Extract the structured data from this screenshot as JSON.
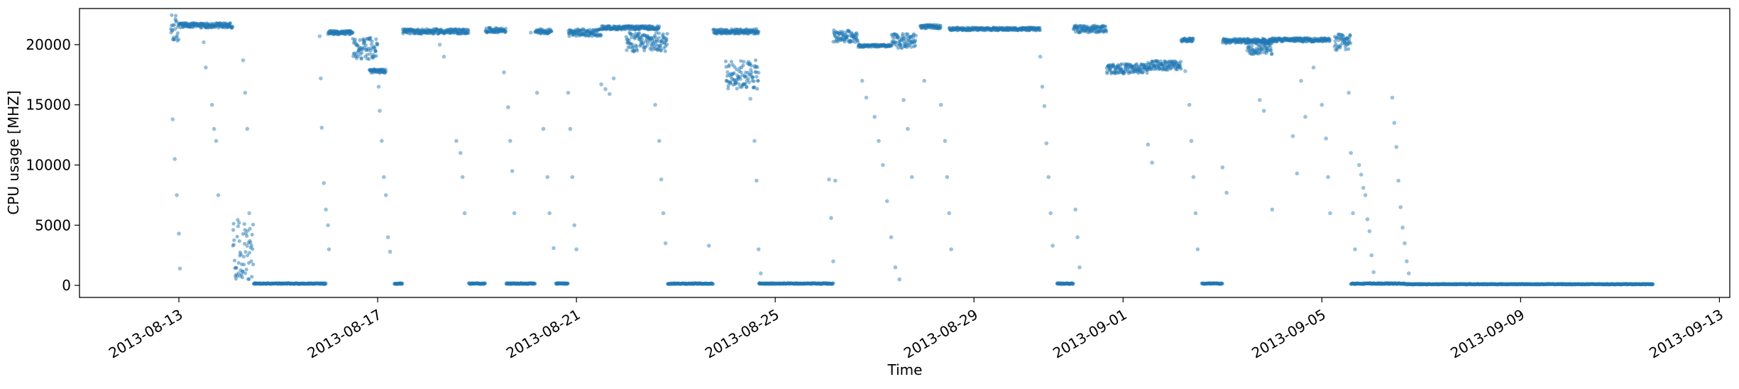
{
  "chart_data": {
    "type": "scatter",
    "title": "",
    "xlabel": "Time",
    "ylabel": "CPU usage [MHZ]",
    "xlim": [
      "2013-08-11T00:00",
      "2013-09-13T05:00"
    ],
    "ylim": [
      -1000,
      23000
    ],
    "x_ticks": [
      "2013-08-13",
      "2013-08-17",
      "2013-08-21",
      "2013-08-25",
      "2013-08-29",
      "2013-09-01",
      "2013-09-05",
      "2013-09-09",
      "2013-09-13"
    ],
    "y_ticks": [
      0,
      5000,
      10000,
      15000,
      20000
    ],
    "y_tick_labels": [
      "0",
      "5000",
      "10000",
      "15000",
      "20000"
    ],
    "grid": false,
    "legend": "none",
    "marker_color": "#1f77b4",
    "series": [
      {
        "segments": [
          {
            "start": "2013-08-12T20:00",
            "end": "2013-08-13T00:00",
            "level": 21300,
            "spread": 1200
          },
          {
            "start": "2013-08-13T00:00",
            "end": "2013-08-14T02:00",
            "level": 21600,
            "spread": 200
          },
          {
            "start": "2013-08-14T02:00",
            "end": "2013-08-14T12:00",
            "level": 3000,
            "spread": 2500
          },
          {
            "start": "2013-08-14T12:00",
            "end": "2013-08-15T23:00",
            "level": 150,
            "spread": 40
          },
          {
            "start": "2013-08-16T00:00",
            "end": "2013-08-16T12:00",
            "level": 21000,
            "spread": 150
          },
          {
            "start": "2013-08-16T12:00",
            "end": "2013-08-17T00:00",
            "level": 19700,
            "spread": 900
          },
          {
            "start": "2013-08-16T20:00",
            "end": "2013-08-17T04:00",
            "level": 17800,
            "spread": 150
          },
          {
            "start": "2013-08-17T08:00",
            "end": "2013-08-17T12:00",
            "level": 150,
            "spread": 40
          },
          {
            "start": "2013-08-17T12:00",
            "end": "2013-08-18T20:00",
            "level": 21100,
            "spread": 200
          },
          {
            "start": "2013-08-18T20:00",
            "end": "2013-08-19T04:00",
            "level": 150,
            "spread": 40
          },
          {
            "start": "2013-08-19T04:00",
            "end": "2013-08-19T14:00",
            "level": 21200,
            "spread": 200
          },
          {
            "start": "2013-08-19T14:00",
            "end": "2013-08-20T04:00",
            "level": 150,
            "spread": 40
          },
          {
            "start": "2013-08-20T04:00",
            "end": "2013-08-20T12:00",
            "level": 21100,
            "spread": 200
          },
          {
            "start": "2013-08-20T14:00",
            "end": "2013-08-20T20:00",
            "level": 150,
            "spread": 40
          },
          {
            "start": "2013-08-20T20:00",
            "end": "2013-08-21T12:00",
            "level": 21000,
            "spread": 300
          },
          {
            "start": "2013-08-21T12:00",
            "end": "2013-08-22T16:00",
            "level": 21400,
            "spread": 150
          },
          {
            "start": "2013-08-22T00:00",
            "end": "2013-08-22T20:00",
            "level": 20200,
            "spread": 800
          },
          {
            "start": "2013-08-22T20:00",
            "end": "2013-08-23T18:00",
            "level": 150,
            "spread": 40
          },
          {
            "start": "2013-08-23T18:00",
            "end": "2013-08-24T16:00",
            "level": 21100,
            "spread": 200
          },
          {
            "start": "2013-08-24T00:00",
            "end": "2013-08-24T16:00",
            "level": 17500,
            "spread": 1200
          },
          {
            "start": "2013-08-24T16:00",
            "end": "2013-08-26T04:00",
            "level": 150,
            "spread": 40
          },
          {
            "start": "2013-08-26T04:00",
            "end": "2013-08-26T16:00",
            "level": 20700,
            "spread": 500
          },
          {
            "start": "2013-08-26T16:00",
            "end": "2013-08-27T08:00",
            "level": 19900,
            "spread": 100
          },
          {
            "start": "2013-08-27T08:00",
            "end": "2013-08-27T20:00",
            "level": 20300,
            "spread": 600
          },
          {
            "start": "2013-08-27T22:00",
            "end": "2013-08-28T08:00",
            "level": 21500,
            "spread": 150
          },
          {
            "start": "2013-08-28T12:00",
            "end": "2013-08-30T08:00",
            "level": 21300,
            "spread": 120
          },
          {
            "start": "2013-08-30T16:00",
            "end": "2013-08-31T00:00",
            "level": 150,
            "spread": 40
          },
          {
            "start": "2013-08-31T00:00",
            "end": "2013-08-31T16:00",
            "level": 21300,
            "spread": 300
          },
          {
            "start": "2013-08-31T16:00",
            "end": "2013-09-01T12:00",
            "level": 18000,
            "spread": 400
          },
          {
            "start": "2013-09-01T12:00",
            "end": "2013-09-02T04:00",
            "level": 18300,
            "spread": 400
          },
          {
            "start": "2013-09-02T04:00",
            "end": "2013-09-02T10:00",
            "level": 20400,
            "spread": 150
          },
          {
            "start": "2013-09-02T14:00",
            "end": "2013-09-03T00:00",
            "level": 150,
            "spread": 40
          },
          {
            "start": "2013-09-03T00:00",
            "end": "2013-09-04T00:00",
            "level": 20300,
            "spread": 200
          },
          {
            "start": "2013-09-03T12:00",
            "end": "2013-09-04T00:00",
            "level": 19800,
            "spread": 600
          },
          {
            "start": "2013-09-04T00:00",
            "end": "2013-09-05T04:00",
            "level": 20400,
            "spread": 150
          },
          {
            "start": "2013-09-05T06:00",
            "end": "2013-09-05T14:00",
            "level": 20200,
            "spread": 700
          },
          {
            "start": "2013-09-05T14:00",
            "end": "2013-09-06T16:00",
            "level": 150,
            "spread": 40
          },
          {
            "start": "2013-09-06T16:00",
            "end": "2013-09-11T16:00",
            "level": 100,
            "spread": 30
          }
        ],
        "scatter_points": [
          [
            "2013-08-12T21:00",
            13800
          ],
          [
            "2013-08-12T22:00",
            10500
          ],
          [
            "2013-08-12T23:00",
            7500
          ],
          [
            "2013-08-13T00:00",
            4300
          ],
          [
            "2013-08-13T00:30",
            1400
          ],
          [
            "2013-08-13T12:00",
            20200
          ],
          [
            "2013-08-13T13:00",
            18100
          ],
          [
            "2013-08-13T16:00",
            15000
          ],
          [
            "2013-08-13T17:00",
            13000
          ],
          [
            "2013-08-13T18:00",
            12000
          ],
          [
            "2013-08-13T19:00",
            7500
          ],
          [
            "2013-08-14T07:00",
            18700
          ],
          [
            "2013-08-14T08:00",
            16000
          ],
          [
            "2013-08-14T09:00",
            13000
          ],
          [
            "2013-08-14T10:00",
            6000
          ],
          [
            "2013-08-15T20:00",
            20700
          ],
          [
            "2013-08-15T20:30",
            17200
          ],
          [
            "2013-08-15T21:00",
            13100
          ],
          [
            "2013-08-15T22:00",
            8500
          ],
          [
            "2013-08-15T23:00",
            6300
          ],
          [
            "2013-08-16T00:00",
            5000
          ],
          [
            "2013-08-16T00:30",
            3000
          ],
          [
            "2013-08-17T00:30",
            16500
          ],
          [
            "2013-08-17T01:00",
            14500
          ],
          [
            "2013-08-17T02:00",
            12000
          ],
          [
            "2013-08-17T03:00",
            9000
          ],
          [
            "2013-08-17T04:00",
            7500
          ],
          [
            "2013-08-17T05:00",
            4000
          ],
          [
            "2013-08-17T06:00",
            2800
          ],
          [
            "2013-08-18T06:00",
            20000
          ],
          [
            "2013-08-18T08:00",
            19000
          ],
          [
            "2013-08-18T14:00",
            12000
          ],
          [
            "2013-08-18T16:00",
            11000
          ],
          [
            "2013-08-18T17:00",
            9000
          ],
          [
            "2013-08-18T18:00",
            6000
          ],
          [
            "2013-08-19T13:00",
            17700
          ],
          [
            "2013-08-19T15:00",
            14800
          ],
          [
            "2013-08-19T16:00",
            12000
          ],
          [
            "2013-08-19T17:00",
            9500
          ],
          [
            "2013-08-19T18:00",
            6000
          ],
          [
            "2013-08-20T02:00",
            21000
          ],
          [
            "2013-08-20T05:00",
            16000
          ],
          [
            "2013-08-20T08:00",
            13000
          ],
          [
            "2013-08-20T10:00",
            9000
          ],
          [
            "2013-08-20T11:00",
            6000
          ],
          [
            "2013-08-20T13:00",
            3100
          ],
          [
            "2013-08-20T20:00",
            16000
          ],
          [
            "2013-08-20T21:00",
            13000
          ],
          [
            "2013-08-20T22:00",
            9000
          ],
          [
            "2013-08-20T23:00",
            5000
          ],
          [
            "2013-08-21T00:00",
            3000
          ],
          [
            "2013-08-21T12:00",
            16700
          ],
          [
            "2013-08-21T14:00",
            16300
          ],
          [
            "2013-08-21T16:00",
            15900
          ],
          [
            "2013-08-21T18:00",
            17200
          ],
          [
            "2013-08-22T14:00",
            15000
          ],
          [
            "2013-08-22T16:00",
            12000
          ],
          [
            "2013-08-22T17:00",
            8800
          ],
          [
            "2013-08-22T18:00",
            6000
          ],
          [
            "2013-08-22T19:00",
            3500
          ],
          [
            "2013-08-23T16:00",
            3300
          ],
          [
            "2013-08-24T12:00",
            15500
          ],
          [
            "2013-08-24T14:00",
            12000
          ],
          [
            "2013-08-24T15:00",
            8700
          ],
          [
            "2013-08-24T16:00",
            3000
          ],
          [
            "2013-08-24T17:00",
            1000
          ],
          [
            "2013-08-26T02:00",
            8800
          ],
          [
            "2013-08-26T03:00",
            5600
          ],
          [
            "2013-08-26T04:00",
            2000
          ],
          [
            "2013-08-26T05:00",
            8700
          ],
          [
            "2013-08-26T18:00",
            17000
          ],
          [
            "2013-08-26T20:00",
            15600
          ],
          [
            "2013-08-27T00:00",
            14000
          ],
          [
            "2013-08-27T02:00",
            12000
          ],
          [
            "2013-08-27T04:00",
            10000
          ],
          [
            "2013-08-27T06:00",
            7000
          ],
          [
            "2013-08-27T08:00",
            4000
          ],
          [
            "2013-08-27T10:00",
            1500
          ],
          [
            "2013-08-27T12:00",
            500
          ],
          [
            "2013-08-27T14:00",
            15400
          ],
          [
            "2013-08-27T16:00",
            13000
          ],
          [
            "2013-08-27T18:00",
            9000
          ],
          [
            "2013-08-28T00:00",
            17000
          ],
          [
            "2013-08-28T08:00",
            15000
          ],
          [
            "2013-08-28T10:00",
            12000
          ],
          [
            "2013-08-28T11:00",
            9000
          ],
          [
            "2013-08-28T12:00",
            6000
          ],
          [
            "2013-08-28T13:00",
            3000
          ],
          [
            "2013-08-30T08:00",
            19000
          ],
          [
            "2013-08-30T09:00",
            16500
          ],
          [
            "2013-08-30T10:00",
            14900
          ],
          [
            "2013-08-30T11:00",
            11800
          ],
          [
            "2013-08-30T12:00",
            9000
          ],
          [
            "2013-08-30T13:00",
            6000
          ],
          [
            "2013-08-30T14:00",
            3300
          ],
          [
            "2013-08-31T01:00",
            6300
          ],
          [
            "2013-08-31T02:00",
            4000
          ],
          [
            "2013-08-31T03:00",
            1500
          ],
          [
            "2013-09-01T12:00",
            11700
          ],
          [
            "2013-09-01T14:00",
            10200
          ],
          [
            "2013-09-02T06:00",
            17800
          ],
          [
            "2013-09-02T08:00",
            15000
          ],
          [
            "2013-09-02T09:00",
            12000
          ],
          [
            "2013-09-02T10:00",
            9000
          ],
          [
            "2013-09-02T11:00",
            6000
          ],
          [
            "2013-09-02T12:00",
            3000
          ],
          [
            "2013-09-03T00:00",
            9800
          ],
          [
            "2013-09-03T02:00",
            7700
          ],
          [
            "2013-09-03T18:00",
            15400
          ],
          [
            "2013-09-03T20:00",
            14500
          ],
          [
            "2013-09-04T00:00",
            6300
          ],
          [
            "2013-09-04T10:00",
            12400
          ],
          [
            "2013-09-04T12:00",
            9300
          ],
          [
            "2013-09-04T14:00",
            17000
          ],
          [
            "2013-09-04T16:00",
            14000
          ],
          [
            "2013-09-04T20:00",
            18100
          ],
          [
            "2013-09-05T00:00",
            15000
          ],
          [
            "2013-09-05T02:00",
            12200
          ],
          [
            "2013-09-05T03:00",
            9000
          ],
          [
            "2013-09-05T04:00",
            6000
          ],
          [
            "2013-09-05T12:00",
            20000
          ],
          [
            "2013-09-05T13:00",
            16000
          ],
          [
            "2013-09-05T14:00",
            11000
          ],
          [
            "2013-09-05T15:00",
            6000
          ],
          [
            "2013-09-05T16:00",
            3000
          ],
          [
            "2013-09-05T18:00",
            10000
          ],
          [
            "2013-09-05T19:00",
            9200
          ],
          [
            "2013-09-05T20:00",
            8100
          ],
          [
            "2013-09-05T21:00",
            7500
          ],
          [
            "2013-09-05T22:00",
            5500
          ],
          [
            "2013-09-05T23:00",
            4500
          ],
          [
            "2013-09-06T00:00",
            2500
          ],
          [
            "2013-09-06T01:00",
            1100
          ],
          [
            "2013-09-06T10:00",
            15600
          ],
          [
            "2013-09-06T11:00",
            13500
          ],
          [
            "2013-09-06T12:00",
            11500
          ],
          [
            "2013-09-06T13:00",
            8700
          ],
          [
            "2013-09-06T14:00",
            6500
          ],
          [
            "2013-09-06T15:00",
            4800
          ],
          [
            "2013-09-06T16:00",
            3500
          ],
          [
            "2013-09-06T17:00",
            2000
          ],
          [
            "2013-09-06T18:00",
            1000
          ]
        ]
      }
    ]
  }
}
